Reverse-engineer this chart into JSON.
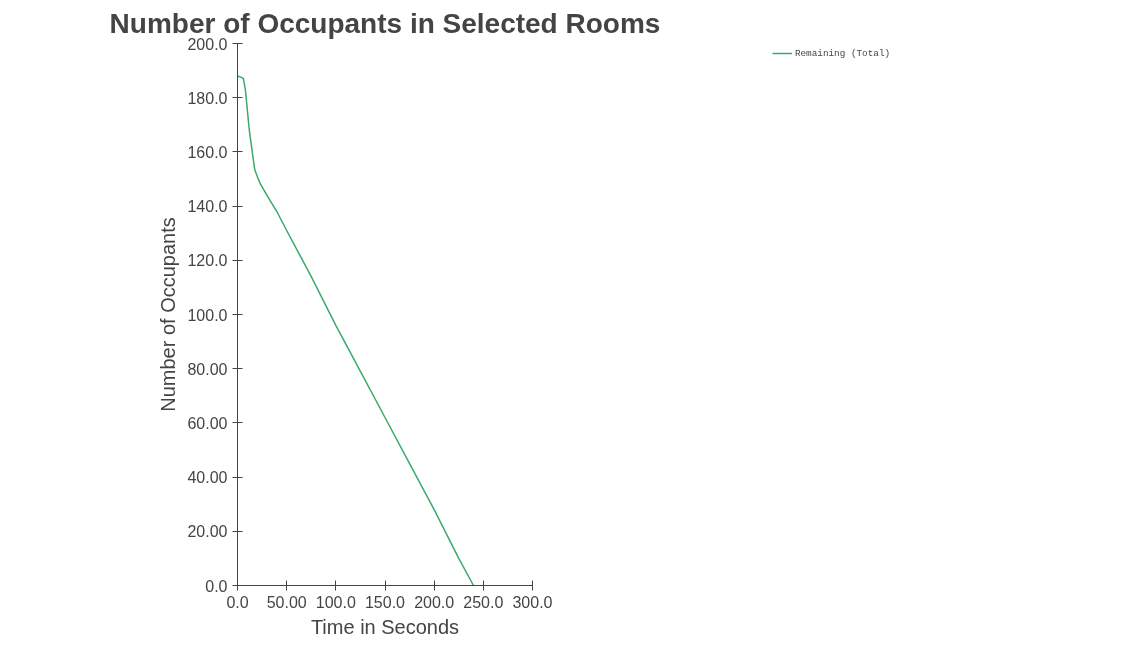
{
  "chart_data": {
    "type": "line",
    "title": "Number of Occupants in Selected Rooms",
    "xlabel": "Time in Seconds",
    "ylabel": "Number of Occupants",
    "series": [
      {
        "name": "Remaining (Total)",
        "color": "#3aaa6a",
        "x": [
          0,
          4,
          6,
          8,
          10,
          12,
          15,
          17.5,
          20,
          23.5,
          30,
          40,
          50,
          75,
          100,
          125,
          150,
          175,
          200,
          225,
          240
        ],
        "values": [
          188,
          187.5,
          187,
          183,
          175.5,
          168,
          160,
          153.5,
          151,
          148,
          144,
          138,
          131,
          114,
          96,
          79,
          62,
          45,
          28,
          10,
          0
        ]
      }
    ],
    "xlim": [
      0,
      300
    ],
    "xticks": [
      {
        "value": 0,
        "label": "0.0"
      },
      {
        "value": 50,
        "label": "50.00"
      },
      {
        "value": 100,
        "label": "100.0"
      },
      {
        "value": 150,
        "label": "150.0"
      },
      {
        "value": 200,
        "label": "200.0"
      },
      {
        "value": 250,
        "label": "250.0"
      },
      {
        "value": 300,
        "label": "300.0"
      }
    ],
    "ylim": [
      0,
      200
    ],
    "yticks": [
      {
        "value": 0,
        "label": "0.0"
      },
      {
        "value": 20,
        "label": "20.00"
      },
      {
        "value": 40,
        "label": "40.00"
      },
      {
        "value": 60,
        "label": "60.00"
      },
      {
        "value": 80,
        "label": "80.00"
      },
      {
        "value": 100,
        "label": "100.0"
      },
      {
        "value": 120,
        "label": "120.0"
      },
      {
        "value": 140,
        "label": "140.0"
      },
      {
        "value": 160,
        "label": "160.0"
      },
      {
        "value": 180,
        "label": "180.0"
      },
      {
        "value": 200,
        "label": "200.0"
      }
    ],
    "grid": false,
    "legend": "top right",
    "marker": "none",
    "line_style": "solid"
  }
}
